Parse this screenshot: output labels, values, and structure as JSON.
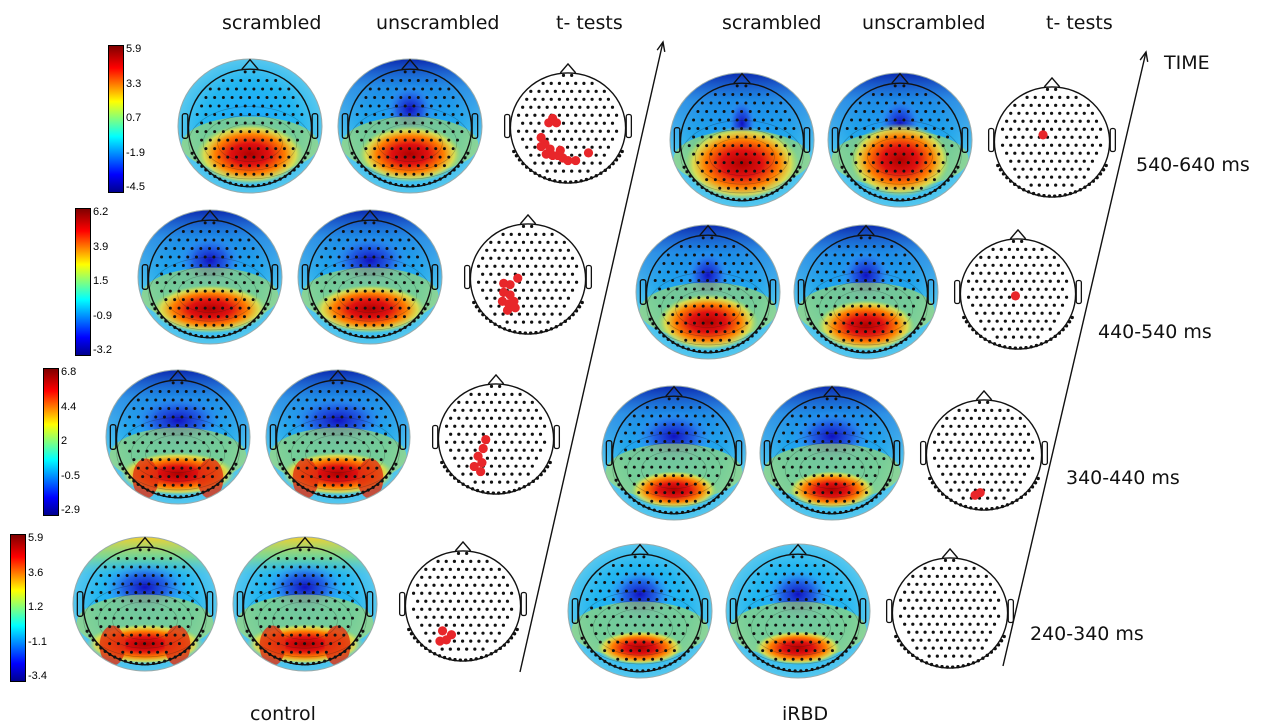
{
  "columns": {
    "control": [
      "scrambled",
      "unscrambled",
      "t- tests"
    ],
    "irbd": [
      "scrambled",
      "unscrambled",
      "t- tests"
    ]
  },
  "groups": {
    "control": "control",
    "irbd": "iRBD"
  },
  "time_axis_label": "TIME",
  "time_windows": [
    "540-640 ms",
    "440-540 ms",
    "340-440 ms",
    "240-340 ms"
  ],
  "colorbars": [
    {
      "ticks": [
        "5.9",
        "3.3",
        "0.7",
        "-1.9",
        "-4.5"
      ]
    },
    {
      "ticks": [
        "6.2",
        "3.9",
        "1.5",
        "-0.9",
        "-3.2"
      ]
    },
    {
      "ticks": [
        "6.8",
        "4.4",
        "2",
        "-0.5",
        "-2.9"
      ]
    },
    {
      "ticks": [
        "5.9",
        "3.6",
        "1.2",
        "-1.1",
        "-3.4"
      ]
    }
  ],
  "significant_electrodes": {
    "control": [
      15,
      10,
      6,
      4
    ],
    "irbd": [
      1,
      1,
      2,
      0
    ]
  },
  "colors": {
    "significant_electrode": "#e8262a",
    "colormap": [
      "#00008f",
      "#0000ff",
      "#00ffff",
      "#ffff00",
      "#ff0000",
      "#800000"
    ]
  }
}
